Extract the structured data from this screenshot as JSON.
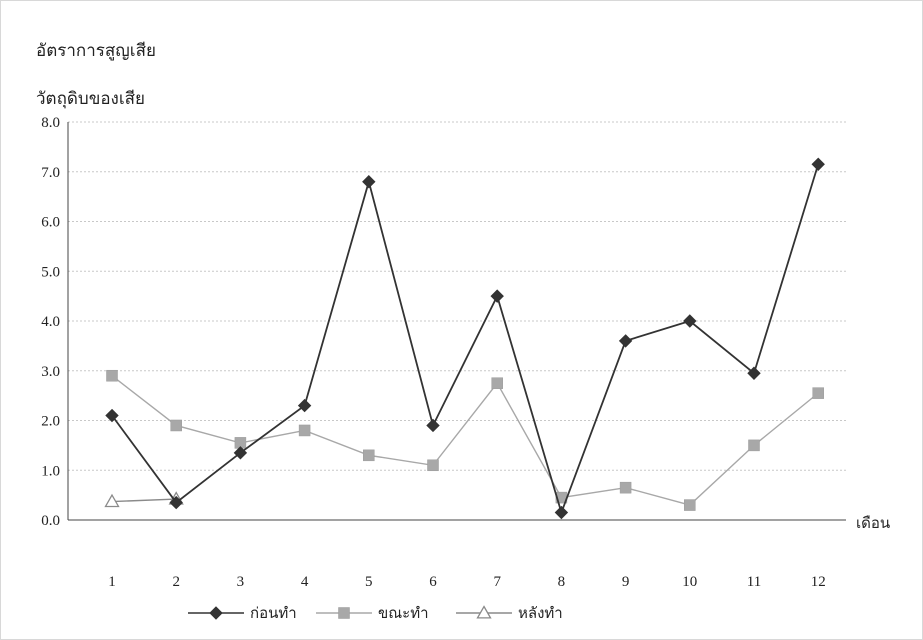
{
  "chart_data": {
    "type": "line",
    "title_line1": "อัตราการสูญเสีย",
    "title_line2": "วัตถุดิบของเสีย",
    "xlabel": "เดือน",
    "categories": [
      "1",
      "2",
      "3",
      "4",
      "5",
      "6",
      "7",
      "8",
      "9",
      "10",
      "11",
      "12"
    ],
    "ylim": [
      0,
      8
    ],
    "yticks": [
      "0.0",
      "1.0",
      "2.0",
      "3.0",
      "4.0",
      "5.0",
      "6.0",
      "7.0",
      "8.0"
    ],
    "grid": true,
    "legend_position": "bottom",
    "series": [
      {
        "name": "ก่อนทำ",
        "marker": "diamond",
        "color": "#333333",
        "values": [
          2.1,
          0.35,
          1.35,
          2.3,
          6.8,
          1.9,
          4.5,
          0.15,
          3.6,
          4.0,
          2.95,
          7.15
        ]
      },
      {
        "name": "ขณะทำ",
        "marker": "square",
        "color": "#a8a8a8",
        "values": [
          2.9,
          1.9,
          1.55,
          1.8,
          1.3,
          1.1,
          2.75,
          0.45,
          0.65,
          0.3,
          1.5,
          2.55
        ]
      },
      {
        "name": "หลังทำ",
        "marker": "triangle",
        "color": "#8a8a8a",
        "values": [
          0.37,
          0.42,
          null,
          null,
          null,
          null,
          null,
          null,
          null,
          null,
          null,
          null
        ]
      }
    ]
  }
}
